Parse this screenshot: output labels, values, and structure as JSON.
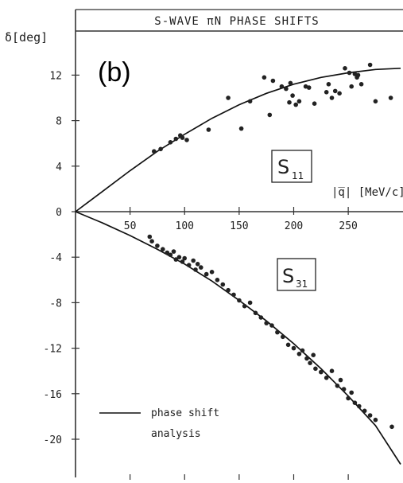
{
  "chart_data": {
    "type": "scatter",
    "title": "S-WAVE πN PHASE SHIFTS",
    "panel_label": "(b)",
    "ylabel": "δ[deg]",
    "xlabel": "|q̅| [MeV/c]",
    "xlim": [
      0,
      298
    ],
    "ylim": [
      -23.5,
      18.5
    ],
    "x_ticks": [
      50,
      100,
      150,
      200,
      250
    ],
    "y_ticks": [
      12,
      8,
      4,
      0,
      -4,
      -8,
      -12,
      -16,
      -20
    ],
    "grid": false,
    "legend": {
      "entries": [
        "phase shift",
        "analysis"
      ],
      "placement": "bottom-left"
    },
    "annotations": [
      "S",
      "11",
      "S",
      "31"
    ],
    "series": [
      {
        "name": "S11",
        "role": "data points",
        "x": [
          72,
          78,
          87,
          92,
          96,
          98,
          102,
          122,
          140,
          152,
          160,
          173,
          178,
          181,
          189,
          193,
          196,
          197,
          199,
          202,
          205,
          211,
          214,
          219,
          230,
          232,
          235,
          238,
          242,
          247,
          251,
          253,
          256,
          258,
          259,
          262,
          270,
          275,
          289
        ],
        "y": [
          5.3,
          5.5,
          6.1,
          6.4,
          6.7,
          6.5,
          6.3,
          7.2,
          10.0,
          7.3,
          9.7,
          11.8,
          8.5,
          11.5,
          11.0,
          10.8,
          9.6,
          11.3,
          10.2,
          9.4,
          9.7,
          11.0,
          10.9,
          9.5,
          10.5,
          11.2,
          10.0,
          10.6,
          10.4,
          12.6,
          12.2,
          11.0,
          12.1,
          11.8,
          12.0,
          11.2,
          12.9,
          9.7,
          10.0
        ]
      },
      {
        "name": "S31",
        "role": "data points",
        "x": [
          68,
          70,
          75,
          80,
          84,
          87,
          90,
          92,
          95,
          98,
          100,
          104,
          108,
          110,
          112,
          115,
          120,
          125,
          130,
          135,
          140,
          145,
          150,
          155,
          160,
          165,
          170,
          175,
          180,
          185,
          190,
          195,
          200,
          205,
          208,
          212,
          215,
          218,
          220,
          225,
          230,
          235,
          240,
          243,
          246,
          250,
          253,
          256,
          260,
          265,
          270,
          275,
          290
        ],
        "y": [
          -2.2,
          -2.6,
          -3.0,
          -3.3,
          -3.6,
          -3.8,
          -3.5,
          -4.2,
          -4.0,
          -4.4,
          -4.1,
          -4.7,
          -4.3,
          -5.1,
          -4.6,
          -4.9,
          -5.5,
          -5.3,
          -6.0,
          -6.4,
          -6.9,
          -7.3,
          -7.8,
          -8.3,
          -8.0,
          -8.9,
          -9.3,
          -9.8,
          -10.0,
          -10.6,
          -11.0,
          -11.7,
          -12.0,
          -12.5,
          -12.2,
          -12.9,
          -13.3,
          -12.6,
          -13.8,
          -14.1,
          -14.6,
          -14.0,
          -15.3,
          -14.8,
          -15.6,
          -16.4,
          -15.9,
          -16.8,
          -17.1,
          -17.5,
          -17.9,
          -18.3,
          -18.9
        ]
      },
      {
        "name": "phase shift analysis",
        "role": "curve",
        "x": [
          0,
          25,
          50,
          75,
          100,
          125,
          150,
          175,
          200,
          225,
          250,
          275,
          298
        ],
        "y": [
          0,
          1.8,
          3.6,
          5.3,
          6.8,
          8.2,
          9.4,
          10.4,
          11.2,
          11.8,
          12.2,
          12.5,
          12.6
        ]
      },
      {
        "name": "phase shift analysis",
        "role": "curve",
        "x": [
          0,
          25,
          50,
          75,
          100,
          125,
          150,
          175,
          200,
          225,
          250,
          275,
          298
        ],
        "y": [
          0,
          -1.0,
          -2.1,
          -3.3,
          -4.6,
          -6.1,
          -7.8,
          -9.6,
          -11.6,
          -13.8,
          -16.2,
          -18.8,
          -22.2
        ]
      }
    ]
  }
}
